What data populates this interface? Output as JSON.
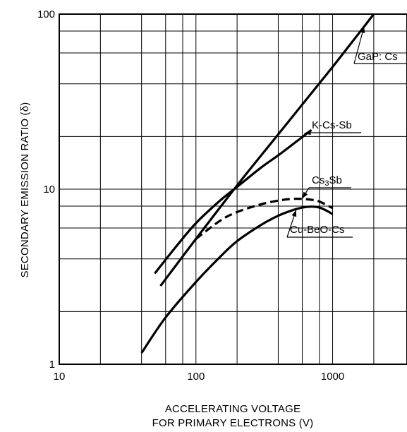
{
  "chart_data": {
    "type": "line",
    "title": "",
    "xlabel_lines": [
      "ACCELERATING VOLTAGE",
      "FOR PRIMARY ELECTRONS (V)"
    ],
    "ylabel": "SECONDARY EMISSION RATIO (δ)",
    "x_scale": "log",
    "y_scale": "log",
    "xlim": [
      10,
      3500
    ],
    "ylim": [
      1,
      100
    ],
    "x_ticks": [
      10,
      100,
      1000
    ],
    "x_tick_labels": [
      "10",
      "100",
      "1000"
    ],
    "y_ticks": [
      1,
      10,
      100
    ],
    "y_tick_labels": [
      "1",
      "10",
      "100"
    ],
    "grid": true,
    "series": [
      {
        "name": "GaP: Cs",
        "style": "solid",
        "points": [
          [
            55,
            2.8
          ],
          [
            100,
            5.2
          ],
          [
            200,
            10.5
          ],
          [
            400,
            20.6
          ],
          [
            1000,
            50
          ],
          [
            2000,
            100
          ]
        ]
      },
      {
        "name": "K-Cs-Sb",
        "style": "solid",
        "points": [
          [
            50,
            3.3
          ],
          [
            70,
            4.6
          ],
          [
            100,
            6.4
          ],
          [
            150,
            8.6
          ],
          [
            200,
            10.3
          ],
          [
            300,
            13.3
          ],
          [
            400,
            15.6
          ],
          [
            500,
            17.8
          ],
          [
            700,
            21.8
          ]
        ]
      },
      {
        "name": "Cs3Sb",
        "name_sub_index": 2,
        "style": "dashed",
        "points": [
          [
            100,
            5.2
          ],
          [
            150,
            6.6
          ],
          [
            200,
            7.4
          ],
          [
            300,
            8.2
          ],
          [
            400,
            8.6
          ],
          [
            500,
            8.8
          ],
          [
            600,
            8.8
          ],
          [
            700,
            8.7
          ],
          [
            800,
            8.5
          ],
          [
            1000,
            7.8
          ]
        ]
      },
      {
        "name": "Cu-BeO-Cs",
        "style": "solid",
        "points": [
          [
            40,
            1.16
          ],
          [
            60,
            1.85
          ],
          [
            100,
            2.95
          ],
          [
            150,
            4.1
          ],
          [
            200,
            5.05
          ],
          [
            300,
            6.25
          ],
          [
            400,
            7.05
          ],
          [
            500,
            7.55
          ],
          [
            600,
            7.85
          ],
          [
            700,
            7.95
          ],
          [
            800,
            7.85
          ],
          [
            900,
            7.55
          ],
          [
            1000,
            7.2
          ]
        ]
      }
    ]
  }
}
